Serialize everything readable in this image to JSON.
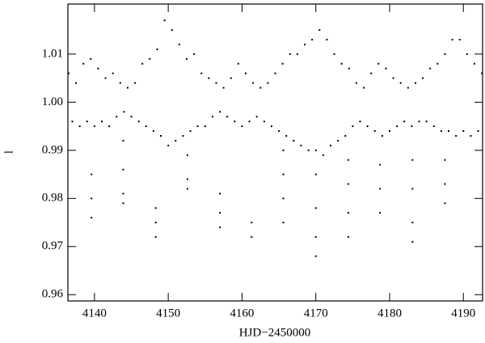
{
  "chart_data": {
    "type": "scatter",
    "x_label": "HJD−2450000",
    "y_label": "l",
    "color": "#000000",
    "xlim": [
      4136.4,
      4192.6
    ],
    "ylim": [
      0.9587,
      1.0204
    ],
    "xticks": [
      4140,
      4150,
      4160,
      4170,
      4180,
      4190
    ],
    "yticks": [
      0.96,
      0.97,
      0.98,
      0.99,
      {
        "value": 1,
        "label": "1.00"
      },
      1.01
    ],
    "x": [
      4136.5,
      4137.0,
      4137.5,
      4138.0,
      4138.5,
      4139.0,
      4139.5,
      4140.0,
      4140.5,
      4141.0,
      4141.5,
      4142.0,
      4142.5,
      4143.0,
      4143.5,
      4144.0,
      4144.5,
      4145.0,
      4145.5,
      4146.0,
      4146.5,
      4147.0,
      4147.5,
      4148.0,
      4148.5,
      4149.0,
      4149.5,
      4150.0,
      4150.5,
      4151.0,
      4151.5,
      4152.0,
      4152.5,
      4153.0,
      4153.5,
      4154.0,
      4154.5,
      4155.0,
      4155.5,
      4156.0,
      4156.5,
      4157.0,
      4157.5,
      4158.0,
      4158.5,
      4159.0,
      4159.5,
      4160.0,
      4160.5,
      4161.0,
      4161.5,
      4162.0,
      4162.5,
      4163.0,
      4163.5,
      4164.0,
      4164.5,
      4165.0,
      4165.5,
      4166.0,
      4166.5,
      4167.0,
      4167.5,
      4168.0,
      4168.5,
      4169.0,
      4169.5,
      4170.0,
      4170.5,
      4171.0,
      4171.5,
      4172.0,
      4172.5,
      4173.0,
      4173.5,
      4174.0,
      4174.5,
      4175.0,
      4175.5,
      4176.0,
      4176.5,
      4177.0,
      4177.5,
      4178.0,
      4178.5,
      4179.0,
      4179.5,
      4180.0,
      4180.5,
      4181.0,
      4181.5,
      4182.0,
      4182.5,
      4183.0,
      4183.5,
      4184.0,
      4184.5,
      4185.0,
      4185.5,
      4186.0,
      4186.5,
      4187.0,
      4187.5,
      4188.0,
      4188.5,
      4189.0,
      4189.5,
      4190.0,
      4190.5,
      4191.0,
      4191.5,
      4192.0,
      4192.5,
      4139.6,
      4139.6,
      4139.6,
      4143.9,
      4143.9,
      4143.9,
      4143.9,
      4148.3,
      4148.3,
      4148.3,
      4152.6,
      4152.6,
      4152.6,
      4157.0,
      4157.0,
      4157.0,
      4161.3,
      4161.3,
      4165.6,
      4165.6,
      4165.6,
      4165.6,
      4170.0,
      4170.0,
      4170.0,
      4170.0,
      4174.4,
      4174.4,
      4174.4,
      4174.4,
      4178.7,
      4178.7,
      4178.7,
      4183.1,
      4183.1,
      4183.1,
      4183.1,
      4187.5,
      4187.5,
      4187.5
    ],
    "values": [
      1.006,
      0.996,
      1.004,
      0.995,
      1.008,
      0.996,
      1.009,
      0.995,
      1.007,
      0.996,
      1.005,
      0.995,
      1.006,
      0.997,
      1.004,
      0.998,
      1.003,
      0.997,
      1.004,
      0.996,
      1.008,
      0.995,
      1.009,
      0.994,
      1.011,
      0.993,
      1.017,
      0.991,
      1.015,
      0.992,
      1.012,
      0.993,
      1.009,
      0.994,
      1.01,
      0.995,
      1.006,
      0.995,
      1.005,
      0.997,
      1.004,
      0.998,
      1.003,
      0.997,
      1.005,
      0.996,
      1.008,
      0.995,
      1.006,
      0.996,
      1.004,
      0.997,
      1.003,
      0.996,
      1.004,
      0.995,
      1.006,
      0.994,
      1.008,
      0.993,
      1.01,
      0.992,
      1.01,
      0.991,
      1.012,
      0.99,
      1.013,
      0.99,
      1.015,
      0.989,
      1.013,
      0.991,
      1.01,
      0.992,
      1.008,
      0.993,
      1.007,
      0.995,
      1.004,
      0.996,
      1.003,
      0.995,
      1.006,
      0.994,
      1.008,
      0.993,
      1.007,
      0.994,
      1.005,
      0.995,
      1.004,
      0.996,
      1.003,
      0.995,
      1.004,
      0.996,
      1.005,
      0.996,
      1.007,
      0.995,
      1.008,
      0.994,
      1.01,
      0.994,
      1.013,
      0.993,
      1.013,
      0.994,
      1.01,
      0.993,
      1.008,
      0.994,
      1.006,
      0.985,
      0.98,
      0.976,
      0.992,
      0.986,
      0.981,
      0.979,
      0.978,
      0.975,
      0.972,
      0.989,
      0.984,
      0.982,
      0.981,
      0.977,
      0.974,
      0.975,
      0.972,
      0.99,
      0.985,
      0.98,
      0.975,
      0.985,
      0.978,
      0.972,
      0.968,
      0.988,
      0.983,
      0.977,
      0.972,
      0.987,
      0.982,
      0.977,
      0.988,
      0.982,
      0.975,
      0.971,
      0.988,
      0.983,
      0.979
    ]
  }
}
